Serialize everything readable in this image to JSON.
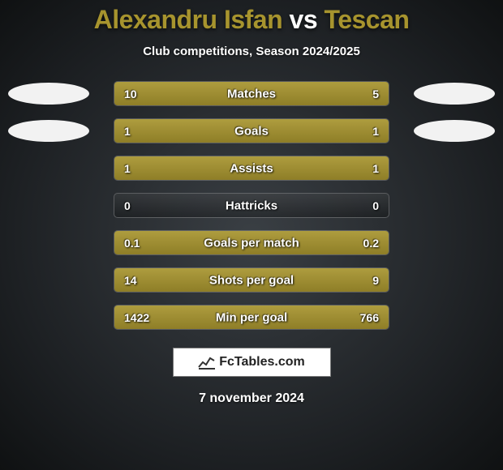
{
  "title": {
    "left": "Alexandru Isfan",
    "vs": "vs",
    "right": "Tescan"
  },
  "title_colors": {
    "left": "#a7942e",
    "vs": "#ffffff",
    "right": "#a7942e"
  },
  "subtitle": "Club competitions, Season 2024/2025",
  "side_shape_color": "#f2f2f2",
  "bar_colors": {
    "left": "#a7942e",
    "right": "#a7942e"
  },
  "rows": [
    {
      "metric": "Matches",
      "left_val": "10",
      "right_val": "5",
      "left_pct": 66.7,
      "right_pct": 33.3,
      "shape_left": true,
      "shape_right": true
    },
    {
      "metric": "Goals",
      "left_val": "1",
      "right_val": "1",
      "left_pct": 50.0,
      "right_pct": 50.0,
      "shape_left": true,
      "shape_right": true
    },
    {
      "metric": "Assists",
      "left_val": "1",
      "right_val": "1",
      "left_pct": 50.0,
      "right_pct": 50.0,
      "shape_left": false,
      "shape_right": false
    },
    {
      "metric": "Hattricks",
      "left_val": "0",
      "right_val": "0",
      "left_pct": 0.0,
      "right_pct": 0.0,
      "shape_left": false,
      "shape_right": false
    },
    {
      "metric": "Goals per match",
      "left_val": "0.1",
      "right_val": "0.2",
      "left_pct": 33.3,
      "right_pct": 66.7,
      "shape_left": false,
      "shape_right": false
    },
    {
      "metric": "Shots per goal",
      "left_val": "14",
      "right_val": "9",
      "left_pct": 60.9,
      "right_pct": 39.1,
      "shape_left": false,
      "shape_right": false
    },
    {
      "metric": "Min per goal",
      "left_val": "1422",
      "right_val": "766",
      "left_pct": 65.0,
      "right_pct": 35.0,
      "shape_left": false,
      "shape_right": false
    }
  ],
  "footer_brand": "FcTables.com",
  "date": "7 november 2024"
}
